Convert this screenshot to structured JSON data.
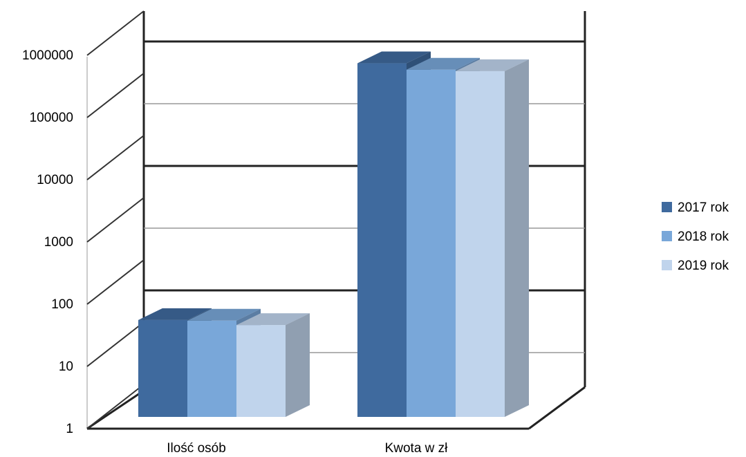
{
  "chart_data": {
    "type": "bar",
    "style": "3d-clustered-column",
    "y_scale": "log",
    "categories": [
      "Ilość osób",
      "Kwota w zł"
    ],
    "series": [
      {
        "name": "2017 rok",
        "values": [
          40,
          700000
        ],
        "color": "#3f6a9e"
      },
      {
        "name": "2018 rok",
        "values": [
          39,
          550000
        ],
        "color": "#79a7d9"
      },
      {
        "name": "2019 rok",
        "values": [
          33,
          520000
        ],
        "color": "#c0d4ec"
      }
    ],
    "y_ticks": [
      "1",
      "10",
      "100",
      "1000",
      "10000",
      "100000",
      "1000000"
    ],
    "ylim": [
      1,
      1000000
    ],
    "grid": true,
    "legend": "right"
  }
}
